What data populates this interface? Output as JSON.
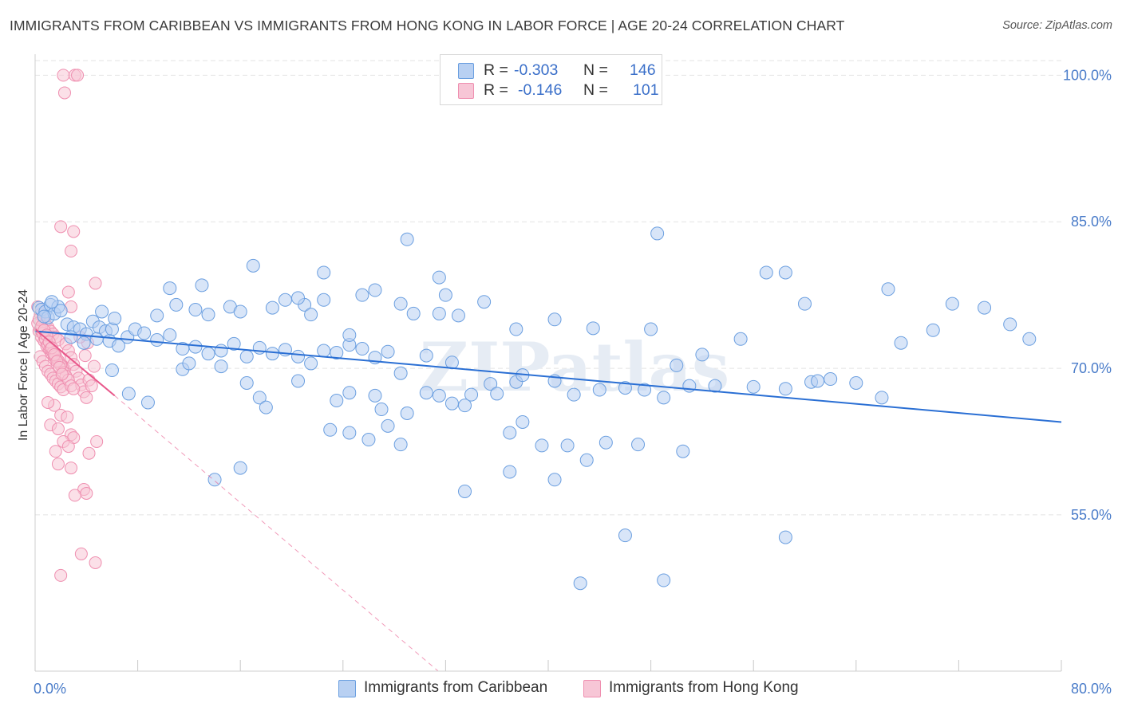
{
  "header": {
    "title": "IMMIGRANTS FROM CARIBBEAN VS IMMIGRANTS FROM HONG KONG IN LABOR FORCE | AGE 20-24 CORRELATION CHART",
    "source": "Source: ZipAtlas.com"
  },
  "legend": {
    "r_label": "R =",
    "n_label": "N =",
    "rows": [
      {
        "r": "-0.303",
        "n": "146"
      },
      {
        "r": "-0.146",
        "n": "101"
      }
    ]
  },
  "colors": {
    "caribbean": "#6b9fe0",
    "caribbean_fill": "#b8d0f2",
    "caribbean_line": "#2a6fd4",
    "hongkong": "#ef8fb0",
    "hongkong_fill": "#f7c6d6",
    "hongkong_line": "#e8578a",
    "tick_text": "#4a7cc9",
    "grid": "#e3e3e3"
  },
  "chart_data": {
    "type": "scatter",
    "title": "IMMIGRANTS FROM CARIBBEAN VS IMMIGRANTS FROM HONG KONG IN LABOR FORCE | AGE 20-24 CORRELATION CHART",
    "xlabel": "",
    "ylabel": "In Labor Force | Age 20-24",
    "xlim": [
      0,
      80
    ],
    "ylim": [
      39,
      101.5
    ],
    "x_tick_labels": [
      "0.0%",
      "80.0%"
    ],
    "y_ticks": [
      55,
      70,
      85,
      100
    ],
    "y_tick_labels": [
      "55.0%",
      "70.0%",
      "85.0%",
      "100.0%"
    ],
    "grid": true,
    "legend_position": "top-center",
    "watermark": "ZIPatlas",
    "series": [
      {
        "name": "Immigrants from Caribbean",
        "r": -0.303,
        "n": 146,
        "trend": {
          "x": [
            0,
            80
          ],
          "y": [
            73.8,
            64.5
          ]
        },
        "points": [
          [
            0.3,
            76.2
          ],
          [
            0.5,
            76.0
          ],
          [
            0.8,
            75.8
          ],
          [
            1.0,
            75.2
          ],
          [
            1.2,
            76.5
          ],
          [
            1.5,
            75.6
          ],
          [
            1.8,
            76.3
          ],
          [
            2.0,
            75.9
          ],
          [
            1.3,
            76.8
          ],
          [
            0.7,
            75.3
          ],
          [
            2.5,
            74.5
          ],
          [
            3.0,
            74.2
          ],
          [
            3.5,
            74.0
          ],
          [
            4.0,
            73.5
          ],
          [
            4.5,
            74.8
          ],
          [
            5.0,
            74.2
          ],
          [
            5.5,
            73.8
          ],
          [
            6.0,
            74.0
          ],
          [
            2.8,
            73.2
          ],
          [
            3.8,
            72.6
          ],
          [
            4.8,
            73.0
          ],
          [
            5.8,
            72.8
          ],
          [
            6.5,
            72.3
          ],
          [
            7.2,
            73.2
          ],
          [
            7.8,
            74.0
          ],
          [
            8.5,
            73.6
          ],
          [
            9.5,
            72.9
          ],
          [
            10.5,
            73.4
          ],
          [
            11.5,
            72.0
          ],
          [
            12.5,
            72.2
          ],
          [
            13.5,
            71.5
          ],
          [
            14.5,
            71.8
          ],
          [
            15.5,
            72.5
          ],
          [
            16.5,
            71.2
          ],
          [
            17.5,
            72.1
          ],
          [
            18.5,
            71.5
          ],
          [
            19.5,
            71.9
          ],
          [
            20.5,
            71.2
          ],
          [
            21.5,
            70.5
          ],
          [
            22.5,
            71.8
          ],
          [
            23.5,
            71.6
          ],
          [
            24.5,
            72.4
          ],
          [
            25.5,
            72.0
          ],
          [
            26.5,
            71.1
          ],
          [
            27.5,
            71.7
          ],
          [
            28.5,
            69.5
          ],
          [
            30.5,
            71.3
          ],
          [
            32.5,
            70.6
          ],
          [
            5.2,
            75.8
          ],
          [
            6.2,
            75.1
          ],
          [
            9.5,
            75.4
          ],
          [
            11.0,
            76.5
          ],
          [
            12.5,
            76.0
          ],
          [
            13.5,
            75.5
          ],
          [
            15.2,
            76.3
          ],
          [
            16.0,
            75.8
          ],
          [
            18.5,
            76.2
          ],
          [
            19.5,
            77.0
          ],
          [
            21.0,
            76.5
          ],
          [
            21.5,
            75.5
          ],
          [
            10.5,
            78.2
          ],
          [
            13.0,
            78.5
          ],
          [
            17.0,
            80.5
          ],
          [
            20.5,
            77.2
          ],
          [
            22.5,
            77.0
          ],
          [
            25.5,
            77.5
          ],
          [
            26.5,
            78.0
          ],
          [
            24.5,
            73.4
          ],
          [
            28.5,
            76.6
          ],
          [
            29.5,
            75.6
          ],
          [
            31.5,
            75.6
          ],
          [
            33.0,
            75.4
          ],
          [
            35.0,
            76.8
          ],
          [
            37.5,
            74.0
          ],
          [
            40.5,
            75.0
          ],
          [
            43.5,
            74.1
          ],
          [
            48.0,
            74.0
          ],
          [
            50.0,
            70.3
          ],
          [
            52.0,
            71.4
          ],
          [
            55.0,
            73.0
          ],
          [
            57.0,
            79.8
          ],
          [
            58.5,
            79.8
          ],
          [
            60.0,
            76.6
          ],
          [
            62.0,
            68.9
          ],
          [
            64.0,
            68.5
          ],
          [
            66.0,
            67.0
          ],
          [
            70.0,
            73.9
          ],
          [
            71.5,
            76.6
          ],
          [
            74.0,
            76.2
          ],
          [
            76.0,
            74.5
          ],
          [
            77.5,
            73.0
          ],
          [
            66.5,
            78.1
          ],
          [
            67.5,
            72.6
          ],
          [
            60.5,
            68.6
          ],
          [
            6.0,
            69.8
          ],
          [
            7.3,
            67.4
          ],
          [
            8.8,
            66.5
          ],
          [
            11.5,
            69.9
          ],
          [
            12.0,
            70.5
          ],
          [
            14.5,
            70.2
          ],
          [
            16.5,
            68.5
          ],
          [
            17.5,
            67.0
          ],
          [
            18.0,
            66.0
          ],
          [
            20.5,
            68.7
          ],
          [
            23.5,
            66.7
          ],
          [
            24.5,
            67.5
          ],
          [
            26.5,
            67.2
          ],
          [
            27.0,
            65.8
          ],
          [
            29.0,
            65.4
          ],
          [
            30.5,
            67.5
          ],
          [
            31.5,
            67.2
          ],
          [
            32.5,
            66.4
          ],
          [
            33.5,
            66.2
          ],
          [
            34.0,
            67.3
          ],
          [
            35.5,
            68.4
          ],
          [
            36.0,
            67.4
          ],
          [
            37.5,
            68.6
          ],
          [
            38.0,
            69.3
          ],
          [
            40.5,
            68.7
          ],
          [
            42.0,
            67.3
          ],
          [
            44.0,
            67.8
          ],
          [
            46.0,
            68.0
          ],
          [
            47.5,
            67.8
          ],
          [
            49.0,
            67.0
          ],
          [
            51.0,
            68.2
          ],
          [
            53.0,
            68.2
          ],
          [
            56.0,
            68.1
          ],
          [
            58.5,
            67.9
          ],
          [
            61.0,
            68.7
          ],
          [
            23.0,
            63.7
          ],
          [
            24.5,
            63.4
          ],
          [
            26.0,
            62.7
          ],
          [
            27.5,
            64.1
          ],
          [
            28.5,
            62.2
          ],
          [
            37.0,
            63.4
          ],
          [
            38.0,
            64.5
          ],
          [
            39.5,
            62.1
          ],
          [
            41.5,
            62.1
          ],
          [
            43.0,
            60.6
          ],
          [
            44.5,
            62.4
          ],
          [
            47.0,
            62.2
          ],
          [
            50.5,
            61.5
          ],
          [
            14.0,
            58.6
          ],
          [
            16.0,
            59.8
          ],
          [
            33.5,
            57.4
          ],
          [
            37.0,
            59.4
          ],
          [
            40.5,
            58.6
          ],
          [
            42.5,
            48.0
          ],
          [
            46.0,
            52.9
          ],
          [
            49.0,
            48.3
          ],
          [
            58.5,
            52.7
          ],
          [
            31.5,
            79.3
          ],
          [
            32.0,
            77.5
          ],
          [
            22.5,
            79.8
          ],
          [
            29.0,
            83.2
          ],
          [
            48.5,
            83.8
          ]
        ]
      },
      {
        "name": "Immigrants from Hong Kong",
        "r": -0.146,
        "n": 101,
        "trend_solid": {
          "x": [
            0,
            6.2
          ],
          "y": [
            74.0,
            67.2
          ]
        },
        "trend_dashed": {
          "x": [
            6.2,
            35
          ],
          "y": [
            67.2,
            35.0
          ]
        },
        "points": [
          [
            2.2,
            100
          ],
          [
            3.1,
            100
          ],
          [
            3.3,
            100
          ],
          [
            2.3,
            98.2
          ],
          [
            2.0,
            84.5
          ],
          [
            3.0,
            84.0
          ],
          [
            2.8,
            82.0
          ],
          [
            4.7,
            78.7
          ],
          [
            2.6,
            77.8
          ],
          [
            2.8,
            76.3
          ],
          [
            0.2,
            76.3
          ],
          [
            0.4,
            75.5
          ],
          [
            0.6,
            75.2
          ],
          [
            0.8,
            74.6
          ],
          [
            1.0,
            74.2
          ],
          [
            1.2,
            73.8
          ],
          [
            1.4,
            73.5
          ],
          [
            1.6,
            73.2
          ],
          [
            1.8,
            72.9
          ],
          [
            0.3,
            73.8
          ],
          [
            0.5,
            73.2
          ],
          [
            0.7,
            72.8
          ],
          [
            0.9,
            72.3
          ],
          [
            1.1,
            71.9
          ],
          [
            1.3,
            71.5
          ],
          [
            1.5,
            71.2
          ],
          [
            1.7,
            70.9
          ],
          [
            1.9,
            70.5
          ],
          [
            2.1,
            70.2
          ],
          [
            2.3,
            69.9
          ],
          [
            0.4,
            71.2
          ],
          [
            0.6,
            70.7
          ],
          [
            0.8,
            70.2
          ],
          [
            1.0,
            69.7
          ],
          [
            1.2,
            69.4
          ],
          [
            1.4,
            69.0
          ],
          [
            1.6,
            68.7
          ],
          [
            1.8,
            68.4
          ],
          [
            2.0,
            68.1
          ],
          [
            2.2,
            67.8
          ],
          [
            2.4,
            72.5
          ],
          [
            2.6,
            71.8
          ],
          [
            2.8,
            71.1
          ],
          [
            3.0,
            70.4
          ],
          [
            3.2,
            69.7
          ],
          [
            3.4,
            69.0
          ],
          [
            3.6,
            68.3
          ],
          [
            3.8,
            67.6
          ],
          [
            4.0,
            67.0
          ],
          [
            4.2,
            68.8
          ],
          [
            4.4,
            68.2
          ],
          [
            4.6,
            70.2
          ],
          [
            3.9,
            71.3
          ],
          [
            4.1,
            72.6
          ],
          [
            3.5,
            73.2
          ],
          [
            1.5,
            66.2
          ],
          [
            1.0,
            66.5
          ],
          [
            2.0,
            65.2
          ],
          [
            2.5,
            65.0
          ],
          [
            1.2,
            64.2
          ],
          [
            1.8,
            63.8
          ],
          [
            2.8,
            63.2
          ],
          [
            3.0,
            62.9
          ],
          [
            2.2,
            62.5
          ],
          [
            2.6,
            62.0
          ],
          [
            4.8,
            62.5
          ],
          [
            1.6,
            61.5
          ],
          [
            4.2,
            61.3
          ],
          [
            1.8,
            60.2
          ],
          [
            2.8,
            59.8
          ],
          [
            3.8,
            57.6
          ],
          [
            4.0,
            57.2
          ],
          [
            3.1,
            57.0
          ],
          [
            3.6,
            51.0
          ],
          [
            4.7,
            50.1
          ],
          [
            2.0,
            48.8
          ],
          [
            0.2,
            74.6
          ],
          [
            0.4,
            74.0
          ],
          [
            0.6,
            73.6
          ],
          [
            0.8,
            73.0
          ],
          [
            1.0,
            72.4
          ],
          [
            1.2,
            72.0
          ],
          [
            1.4,
            71.6
          ],
          [
            1.6,
            71.3
          ],
          [
            1.8,
            70.8
          ],
          [
            2.0,
            70.3
          ],
          [
            2.2,
            69.6
          ],
          [
            2.4,
            69.2
          ],
          [
            2.6,
            68.8
          ],
          [
            2.8,
            68.2
          ],
          [
            3.0,
            67.9
          ],
          [
            0.3,
            75.0
          ],
          [
            0.5,
            74.3
          ],
          [
            0.7,
            73.9
          ],
          [
            0.9,
            73.4
          ],
          [
            1.1,
            72.7
          ],
          [
            1.3,
            72.1
          ],
          [
            1.5,
            71.4
          ],
          [
            1.7,
            70.7
          ],
          [
            1.9,
            70.1
          ],
          [
            2.1,
            69.4
          ]
        ]
      }
    ]
  },
  "bottom_legend": {
    "items": [
      {
        "label": "Immigrants from Caribbean"
      },
      {
        "label": "Immigrants from Hong Kong"
      }
    ]
  }
}
